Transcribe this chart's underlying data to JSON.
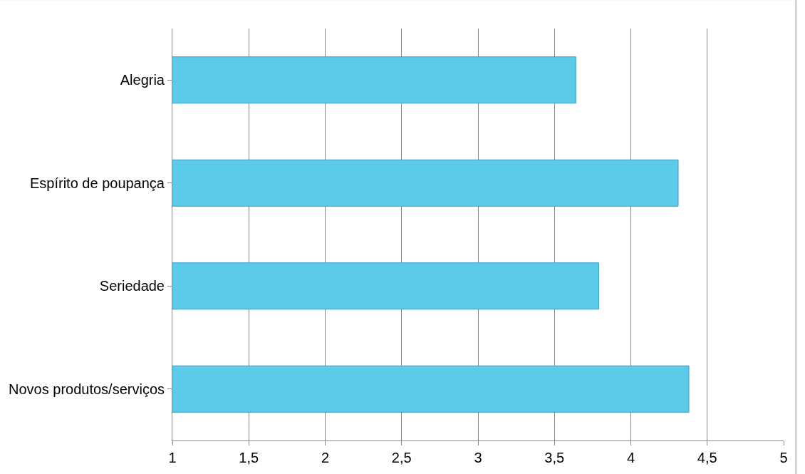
{
  "chart_data": {
    "type": "bar",
    "orientation": "horizontal",
    "categories": [
      "Alegria",
      "Espírito de poupança",
      "Seriedade",
      "Novos produtos/serviços"
    ],
    "values": [
      3.64,
      4.31,
      3.79,
      4.38
    ],
    "color": "#5ccbe9",
    "xlim": [
      1,
      5
    ],
    "xticks": [
      1,
      {
        "value": 1.5,
        "label": "1,5"
      },
      2,
      {
        "value": 2.5,
        "label": "2,5"
      },
      3,
      {
        "value": 3.5,
        "label": "3,5"
      },
      4,
      {
        "value": 4.5,
        "label": "4,5"
      },
      5
    ],
    "grid": "x",
    "legend": false
  }
}
